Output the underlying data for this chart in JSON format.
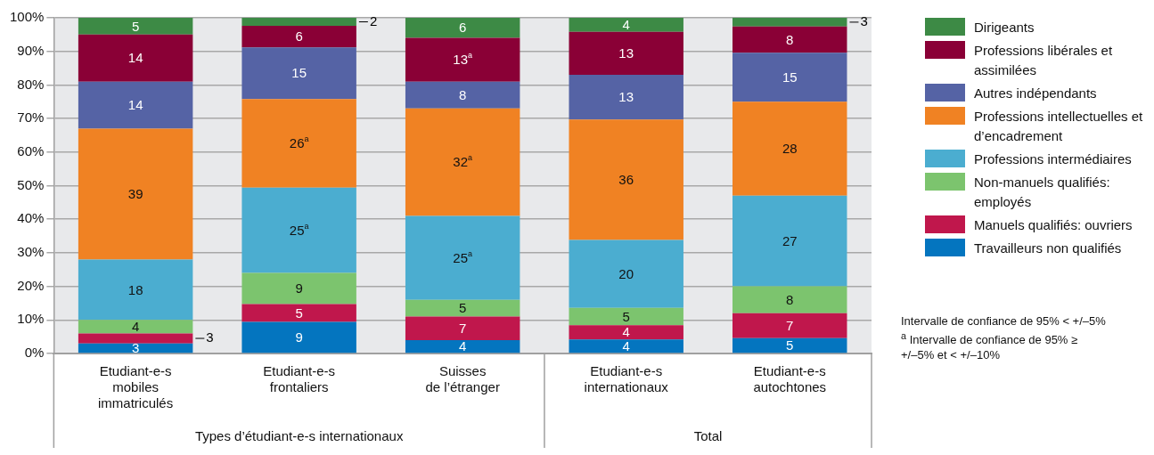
{
  "chart_data": {
    "type": "bar",
    "stacked": true,
    "categories": [
      "Etudiant-e-s\nmobiles\nimmatriculés",
      "Etudiant-e-s\nfrontaliers",
      "Suisses\nde l’étranger",
      "Etudiant-e-s\ninternationaux",
      "Etudiant-e-s\nautochtones"
    ],
    "ylim": [
      0,
      100
    ],
    "yticks": [
      {
        "value": 0,
        "label": "0%"
      },
      {
        "value": 10,
        "label": "10%"
      },
      {
        "value": 20,
        "label": "20%"
      },
      {
        "value": 30,
        "label": "30%"
      },
      {
        "value": 40,
        "label": "40%"
      },
      {
        "value": 50,
        "label": "50%"
      },
      {
        "value": 60,
        "label": "60%"
      },
      {
        "value": 70,
        "label": "70%"
      },
      {
        "value": 80,
        "label": "80%"
      },
      {
        "value": 90,
        "label": "90%"
      },
      {
        "value": 100,
        "label": "100%"
      }
    ],
    "grid": "y",
    "legend": "right",
    "series": [
      {
        "name": "Travailleurs non qualifiés",
        "color": "#0475bf",
        "values": [
          3,
          9.4,
          4,
          4.2,
          4.6
        ],
        "value_labels": [
          "3",
          "9",
          "4",
          "4",
          "5"
        ]
      },
      {
        "name": "Manuels qualifiés: ouvriers",
        "color": "#c0174c",
        "values": [
          3,
          5.3,
          7,
          4.2,
          7.4
        ],
        "value_labels": [
          "3",
          "5",
          "7",
          "4",
          "7"
        ]
      },
      {
        "name": "Non-manuels qualifiés: employés",
        "color": "#7cc46e",
        "values": [
          4,
          9.3,
          5,
          5.2,
          8
        ],
        "value_labels": [
          "4",
          "9",
          "5",
          "5",
          "8"
        ]
      },
      {
        "name": "Professions intermédiaires",
        "color": "#4badd0",
        "values": [
          18,
          25.4,
          25,
          20.2,
          27
        ],
        "value_labels": [
          "18",
          "25$^{a}$",
          "25$^{a}$",
          "20",
          "27"
        ]
      },
      {
        "name": "Professions intellectuelles et d’encadrement",
        "color": "#f08223",
        "values": [
          39,
          26.4,
          32,
          35.9,
          28
        ],
        "value_labels": [
          "39",
          "26$^{a}$",
          "32$^{a}$",
          "36",
          "28"
        ]
      },
      {
        "name": "Autres indépendants",
        "color": "#5563a5",
        "values": [
          14,
          15.4,
          8,
          13.3,
          14.6
        ],
        "value_labels": [
          "14",
          "15",
          "8",
          "13",
          "15"
        ]
      },
      {
        "name": "Professions libérales et assimilées",
        "color": "#8a0036",
        "values": [
          14,
          6.4,
          13,
          12.8,
          7.8
        ],
        "value_labels": [
          "14",
          "6",
          "13$^{a}$",
          "13",
          "8"
        ]
      },
      {
        "name": "Dirigeants",
        "color": "#3d8a45",
        "values": [
          5,
          2.4,
          6,
          4.2,
          2.6
        ],
        "value_labels": [
          "5",
          "2",
          "6",
          "4",
          "3"
        ]
      }
    ],
    "annotations": [
      "Types d’étudiant-e-s internationaux",
      "Total",
      "Intervalle de confiance de 95% < +/–5%",
      "$^{a}$ Intervalle de confiance de 95% ≥ +/–5% et < +/–10%"
    ]
  }
}
